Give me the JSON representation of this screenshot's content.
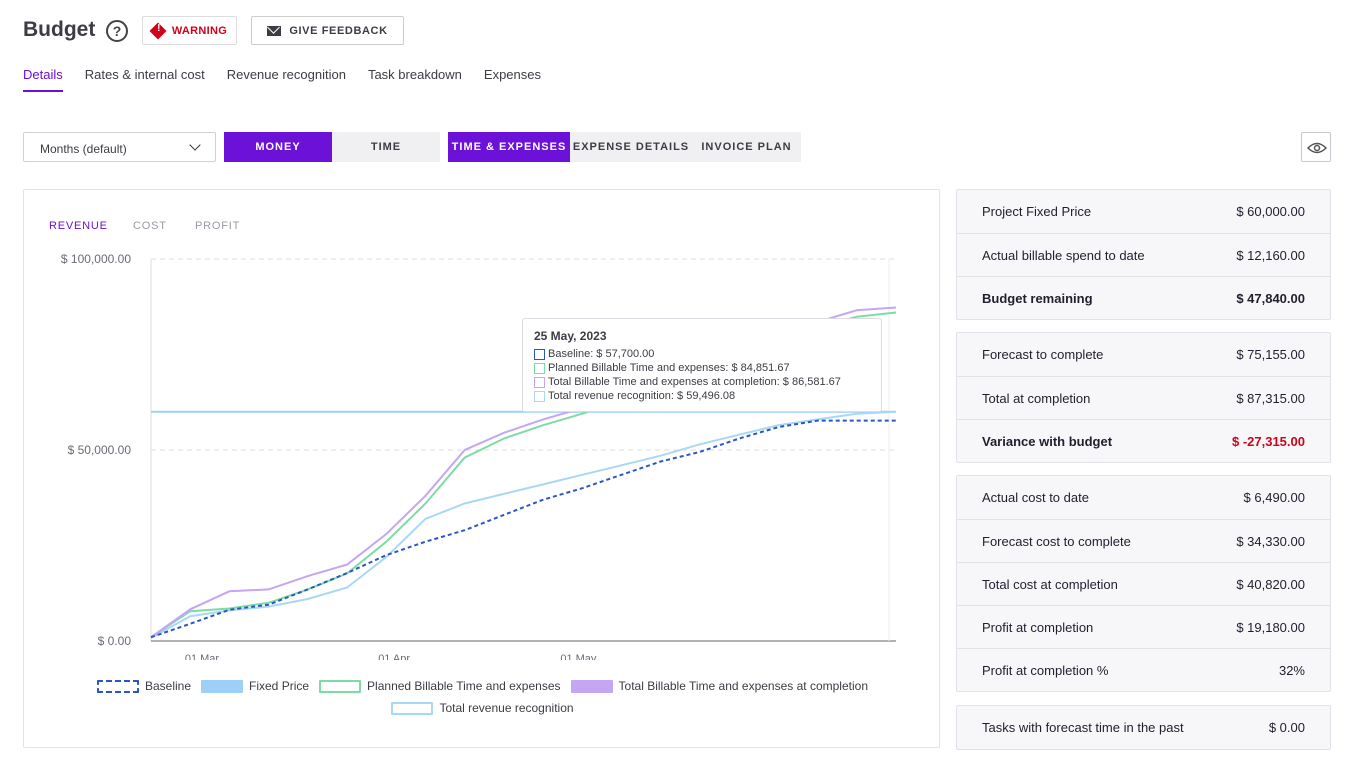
{
  "header": {
    "title": "Budget",
    "help": "?",
    "warning_label": "WARNING",
    "feedback_label": "GIVE FEEDBACK"
  },
  "tabs": [
    "Details",
    "Rates & internal cost",
    "Revenue recognition",
    "Task breakdown",
    "Expenses"
  ],
  "controls": {
    "period": "Months (default)",
    "money": "MONEY",
    "time": "TIME",
    "time_expenses": "TIME & EXPENSES",
    "expense_details": "EXPENSE DETAILS",
    "invoice_plan": "INVOICE PLAN"
  },
  "chart_tabs": [
    "REVENUE",
    "COST",
    "PROFIT"
  ],
  "tooltip": {
    "date": "25 May, 2023",
    "rows": [
      {
        "label": "Baseline: $ 57,700.00",
        "color": "#2a56c6"
      },
      {
        "label": "Planned Billable Time and expenses: $ 84,851.67",
        "color": "#7ddba6"
      },
      {
        "label": "Total Billable Time and expenses at completion: $ 86,581.67",
        "color": "#c4a6f5"
      },
      {
        "label": "Total revenue recognition: $ 59,496.08",
        "color": "#a8d8f5"
      }
    ]
  },
  "chart_data": {
    "type": "line",
    "yticks": [
      "$ 100,000.00",
      "$ 50,000.00",
      "$ 0.00"
    ],
    "ylim": [
      0,
      100000
    ],
    "xticks": [
      "01 Mar",
      "01 Apr",
      "01 May"
    ],
    "legend": [
      "Baseline",
      "Fixed Price",
      "Planned Billable Time and expenses",
      "Total Billable Time and expenses at completion",
      "Total revenue recognition"
    ],
    "colors": {
      "baseline": "#2a56c6",
      "fixed": "#9ed0f7",
      "planned": "#7ddba6",
      "total": "#c4a6f5",
      "revenue": "#a8d8f5"
    },
    "x_dates": [
      "22 Feb",
      "27 Feb",
      "05 Mar",
      "10 Mar",
      "15 Mar",
      "20 Mar",
      "25 Mar",
      "30 Mar",
      "04 Apr",
      "09 Apr",
      "14 Apr",
      "19 Apr",
      "24 Apr",
      "29 Apr",
      "04 May",
      "09 May",
      "14 May",
      "19 May",
      "24 May",
      "29 May"
    ],
    "series": [
      {
        "name": "Baseline",
        "key": "baseline",
        "values": [
          1000,
          4500,
          8200,
          9500,
          13500,
          17800,
          22500,
          26000,
          29000,
          33000,
          37000,
          40000,
          43500,
          47000,
          49500,
          53000,
          56000,
          57700,
          57700,
          57700
        ]
      },
      {
        "name": "Fixed Price",
        "key": "fixed",
        "values": [
          60000,
          60000,
          60000,
          60000,
          60000,
          60000,
          60000,
          60000,
          60000,
          60000,
          60000,
          60000,
          60000,
          60000,
          60000,
          60000,
          60000,
          60000,
          60000,
          60000
        ]
      },
      {
        "name": "Planned Billable Time and expenses",
        "key": "planned",
        "values": [
          1000,
          7800,
          8500,
          10000,
          13500,
          17700,
          26000,
          36000,
          48000,
          53000,
          56500,
          59500,
          63000,
          66500,
          70500,
          74500,
          78500,
          82000,
          84900,
          86000
        ]
      },
      {
        "name": "Total Billable Time and expenses at completion",
        "key": "total",
        "values": [
          1000,
          8300,
          13000,
          13500,
          17000,
          20000,
          28000,
          38000,
          50000,
          54500,
          58000,
          61000,
          64500,
          68000,
          72000,
          76000,
          80000,
          83500,
          86600,
          87300
        ]
      },
      {
        "name": "Total revenue recognition",
        "key": "revenue",
        "values": [
          800,
          6500,
          8000,
          9000,
          11000,
          14000,
          22000,
          32000,
          36000,
          38500,
          41000,
          43500,
          46000,
          48500,
          51500,
          54000,
          56500,
          58000,
          59500,
          60000
        ]
      }
    ]
  },
  "stats": {
    "group1": [
      {
        "label": "Project Fixed Price",
        "value": "$ 60,000.00"
      },
      {
        "label": "Actual billable spend to date",
        "value": "$ 12,160.00"
      },
      {
        "label": "Budget remaining",
        "value": "$ 47,840.00"
      }
    ],
    "group2": [
      {
        "label": "Forecast to complete",
        "value": "$ 75,155.00"
      },
      {
        "label": "Total at completion",
        "value": "$ 87,315.00"
      },
      {
        "label": "Variance with budget",
        "value": "$ -27,315.00"
      }
    ],
    "group3": [
      {
        "label": "Actual cost to date",
        "value": "$ 6,490.00"
      },
      {
        "label": "Forecast cost to complete",
        "value": "$ 34,330.00"
      },
      {
        "label": "Total cost at completion",
        "value": "$ 40,820.00"
      },
      {
        "label": "Profit at completion",
        "value": "$ 19,180.00"
      },
      {
        "label": "Profit at completion %",
        "value": "32%"
      }
    ],
    "group4": [
      {
        "label": "Tasks with forecast time in the past",
        "value": "$ 0.00"
      }
    ]
  }
}
